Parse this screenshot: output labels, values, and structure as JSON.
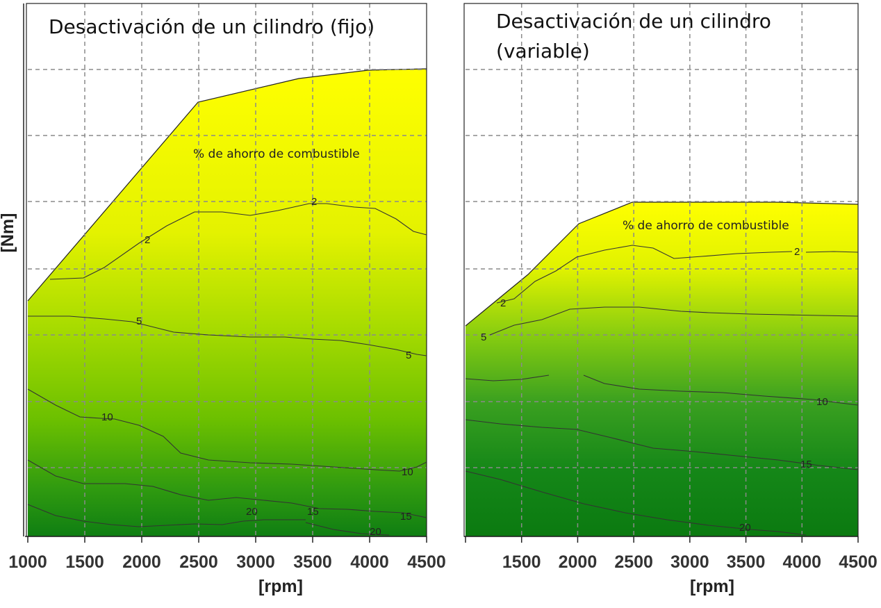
{
  "chart_data": [
    {
      "type": "contour",
      "title": "Desactivación de un cilindro (fijo)",
      "region_label": "% de ahorro de combustible",
      "xlabel": "[rpm]",
      "ylabel": "[Nm]",
      "xlim": [
        1000,
        4500
      ],
      "x_ticks": [
        1000,
        1500,
        2000,
        2500,
        3000,
        3500,
        4000,
        4500
      ],
      "x_tick_labels": [
        "1000",
        "1500",
        "2000",
        "2500",
        "3000",
        "3500",
        "4000",
        "4500"
      ],
      "grid": true,
      "colors": {
        "low": "#ffff00",
        "mid": "#8fd400",
        "high": "#0b7a10"
      },
      "contour_levels": [
        2,
        5,
        10,
        15,
        20
      ],
      "contour_label_texts": [
        "2",
        "2",
        "5",
        "5",
        "10",
        "10",
        "20",
        "15",
        "15",
        "20"
      ]
    },
    {
      "type": "contour",
      "title_lines": [
        "Desactivación de un cilindro",
        "(variable)"
      ],
      "region_label": "% de ahorro de combustible",
      "xlabel": "[rpm]",
      "xlim": [
        1000,
        4500
      ],
      "x_ticks": [
        1000,
        1500,
        2000,
        2500,
        3000,
        3500,
        4000,
        4500
      ],
      "x_tick_labels": [
        "",
        "1500",
        "2000",
        "2500",
        "3000",
        "3500",
        "4000",
        "4500"
      ],
      "grid": true,
      "colors": {
        "low": "#ffff00",
        "mid": "#6fc800",
        "high": "#0b7a10"
      },
      "contour_levels": [
        2,
        5,
        10,
        15,
        20
      ],
      "contour_label_texts": [
        "2",
        "2",
        "5",
        "10",
        "15",
        "20"
      ]
    }
  ]
}
